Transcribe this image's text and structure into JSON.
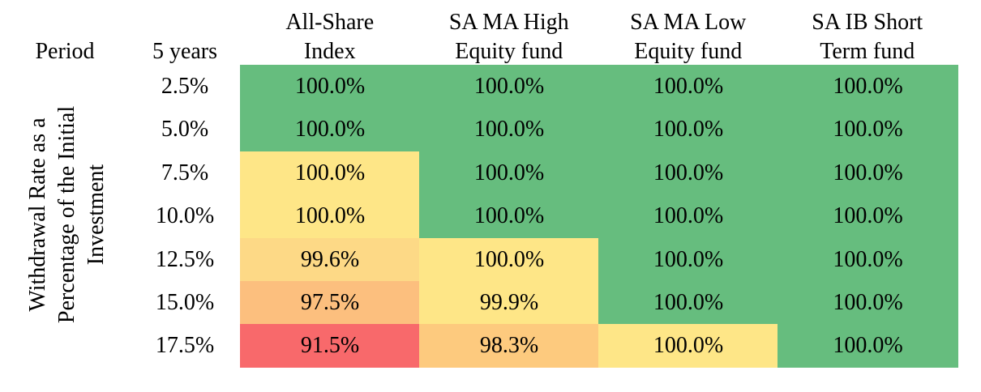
{
  "header": {
    "period_label": "Period",
    "years_label": "5 years"
  },
  "chart_data": {
    "type": "heatmap",
    "columns": [
      [
        "All-Share",
        "Index"
      ],
      [
        "SA MA High",
        "Equity fund"
      ],
      [
        "SA MA Low",
        "Equity fund"
      ],
      [
        "SA IB Short",
        "Term fund"
      ]
    ],
    "rows": [
      "2.5%",
      "5.0%",
      "7.5%",
      "10.0%",
      "12.5%",
      "15.0%",
      "17.5%"
    ],
    "ylabel": [
      "Withdrawal Rate as a",
      "Percentage of the Initial",
      "Investment"
    ],
    "values": [
      [
        "100.0%",
        "100.0%",
        "100.0%",
        "100.0%"
      ],
      [
        "100.0%",
        "100.0%",
        "100.0%",
        "100.0%"
      ],
      [
        "100.0%",
        "100.0%",
        "100.0%",
        "100.0%"
      ],
      [
        "100.0%",
        "100.0%",
        "100.0%",
        "100.0%"
      ],
      [
        "99.6%",
        "100.0%",
        "100.0%",
        "100.0%"
      ],
      [
        "97.5%",
        "99.9%",
        "100.0%",
        "100.0%"
      ],
      [
        "91.5%",
        "98.3%",
        "100.0%",
        "100.0%"
      ]
    ],
    "cell_colors": [
      [
        "#66bd7e",
        "#66bd7e",
        "#66bd7e",
        "#66bd7e"
      ],
      [
        "#66bd7e",
        "#66bd7e",
        "#66bd7e",
        "#66bd7e"
      ],
      [
        "#fee687",
        "#66bd7e",
        "#66bd7e",
        "#66bd7e"
      ],
      [
        "#fee687",
        "#66bd7e",
        "#66bd7e",
        "#66bd7e"
      ],
      [
        "#fdd986",
        "#fee687",
        "#66bd7e",
        "#66bd7e"
      ],
      [
        "#fcbf7e",
        "#fee687",
        "#66bd7e",
        "#66bd7e"
      ],
      [
        "#f8696b",
        "#fdca7e",
        "#fee687",
        "#66bd7e"
      ]
    ]
  }
}
